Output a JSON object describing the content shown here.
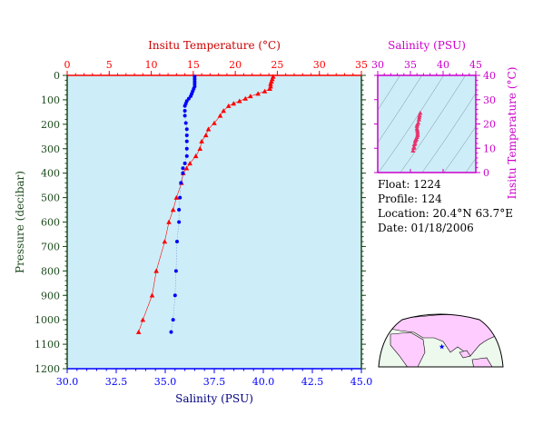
{
  "chart_data": [
    {
      "type": "scatter",
      "title": "",
      "top_axis": {
        "label": "Insitu Temperature (°C)",
        "range": [
          0,
          35
        ],
        "ticks": [
          "0",
          "5",
          "10",
          "15",
          "20",
          "25",
          "30",
          "35"
        ]
      },
      "bottom_axis": {
        "label": "Salinity (PSU)",
        "range": [
          30.0,
          45.0
        ],
        "ticks": [
          "30.0",
          "32.5",
          "35.0",
          "37.5",
          "40.0",
          "42.5",
          "45.0"
        ]
      },
      "left_axis": {
        "label": "Pressure (decibar)",
        "range": [
          0,
          1200
        ],
        "inverted": true,
        "ticks": [
          "0",
          "100",
          "200",
          "300",
          "400",
          "500",
          "600",
          "700",
          "800",
          "900",
          "1000",
          "1100",
          "1200"
        ]
      },
      "series": [
        {
          "variable": "temperature",
          "color": "#ff0000",
          "marker": "triangle",
          "points": [
            {
              "x": 24.5,
              "y": 5
            },
            {
              "x": 24.4,
              "y": 15
            },
            {
              "x": 24.3,
              "y": 25
            },
            {
              "x": 24.2,
              "y": 35
            },
            {
              "x": 24.2,
              "y": 45
            },
            {
              "x": 24.1,
              "y": 55
            },
            {
              "x": 23.5,
              "y": 65
            },
            {
              "x": 22.7,
              "y": 75
            },
            {
              "x": 21.8,
              "y": 85
            },
            {
              "x": 21.2,
              "y": 95
            },
            {
              "x": 20.5,
              "y": 105
            },
            {
              "x": 19.8,
              "y": 115
            },
            {
              "x": 19.2,
              "y": 125
            },
            {
              "x": 18.6,
              "y": 145
            },
            {
              "x": 18.2,
              "y": 165
            },
            {
              "x": 17.5,
              "y": 195
            },
            {
              "x": 16.8,
              "y": 220
            },
            {
              "x": 16.5,
              "y": 245
            },
            {
              "x": 16.0,
              "y": 270
            },
            {
              "x": 15.8,
              "y": 300
            },
            {
              "x": 15.3,
              "y": 330
            },
            {
              "x": 14.6,
              "y": 360
            },
            {
              "x": 14.2,
              "y": 380
            },
            {
              "x": 13.8,
              "y": 400
            },
            {
              "x": 13.6,
              "y": 440
            },
            {
              "x": 13.0,
              "y": 500
            },
            {
              "x": 12.6,
              "y": 550
            },
            {
              "x": 12.1,
              "y": 600
            },
            {
              "x": 11.6,
              "y": 680
            },
            {
              "x": 10.6,
              "y": 800
            },
            {
              "x": 10.1,
              "y": 900
            },
            {
              "x": 9.0,
              "y": 1000
            },
            {
              "x": 8.5,
              "y": 1050
            }
          ]
        },
        {
          "variable": "salinity",
          "color": "#0000ff",
          "marker": "circle",
          "points": [
            {
              "x": 36.5,
              "y": 5
            },
            {
              "x": 36.5,
              "y": 15
            },
            {
              "x": 36.5,
              "y": 25
            },
            {
              "x": 36.5,
              "y": 35
            },
            {
              "x": 36.5,
              "y": 45
            },
            {
              "x": 36.45,
              "y": 55
            },
            {
              "x": 36.4,
              "y": 65
            },
            {
              "x": 36.35,
              "y": 75
            },
            {
              "x": 36.3,
              "y": 85
            },
            {
              "x": 36.2,
              "y": 95
            },
            {
              "x": 36.1,
              "y": 105
            },
            {
              "x": 36.05,
              "y": 115
            },
            {
              "x": 36.0,
              "y": 125
            },
            {
              "x": 36.0,
              "y": 145
            },
            {
              "x": 36.0,
              "y": 165
            },
            {
              "x": 36.05,
              "y": 195
            },
            {
              "x": 36.1,
              "y": 220
            },
            {
              "x": 36.1,
              "y": 245
            },
            {
              "x": 36.1,
              "y": 270
            },
            {
              "x": 36.1,
              "y": 300
            },
            {
              "x": 36.1,
              "y": 330
            },
            {
              "x": 36.0,
              "y": 360
            },
            {
              "x": 35.9,
              "y": 380
            },
            {
              "x": 35.9,
              "y": 400
            },
            {
              "x": 35.8,
              "y": 440
            },
            {
              "x": 35.75,
              "y": 500
            },
            {
              "x": 35.7,
              "y": 550
            },
            {
              "x": 35.7,
              "y": 600
            },
            {
              "x": 35.6,
              "y": 680
            },
            {
              "x": 35.55,
              "y": 800
            },
            {
              "x": 35.5,
              "y": 900
            },
            {
              "x": 35.4,
              "y": 1000
            },
            {
              "x": 35.3,
              "y": 1050
            }
          ]
        }
      ]
    },
    {
      "type": "scatter",
      "title": "",
      "top_axis": {
        "label": "Salinity (PSU)",
        "range": [
          30,
          45
        ],
        "ticks": [
          "30",
          "35",
          "40",
          "45"
        ]
      },
      "right_axis": {
        "label": "Insitu Temperature (°C)",
        "range": [
          0,
          40
        ],
        "ticks": [
          "0",
          "10",
          "20",
          "30",
          "40"
        ]
      },
      "background_curves": "density isolines",
      "series": [
        {
          "color": "#e8336d",
          "marker": "triangle",
          "points": [
            {
              "x": 36.5,
              "y": 24.5
            },
            {
              "x": 36.4,
              "y": 23.5
            },
            {
              "x": 36.35,
              "y": 22.7
            },
            {
              "x": 36.3,
              "y": 21.8
            },
            {
              "x": 36.2,
              "y": 20.5
            },
            {
              "x": 36.05,
              "y": 19.8
            },
            {
              "x": 36.0,
              "y": 19.2
            },
            {
              "x": 36.0,
              "y": 18.2
            },
            {
              "x": 36.05,
              "y": 17.5
            },
            {
              "x": 36.1,
              "y": 16.8
            },
            {
              "x": 36.1,
              "y": 16.0
            },
            {
              "x": 36.1,
              "y": 15.3
            },
            {
              "x": 36.0,
              "y": 14.6
            },
            {
              "x": 35.9,
              "y": 13.8
            },
            {
              "x": 35.8,
              "y": 13.6
            },
            {
              "x": 35.75,
              "y": 13.0
            },
            {
              "x": 35.7,
              "y": 12.1
            },
            {
              "x": 35.6,
              "y": 11.6
            },
            {
              "x": 35.55,
              "y": 10.6
            },
            {
              "x": 35.5,
              "y": 10.1
            },
            {
              "x": 35.4,
              "y": 9.0
            }
          ]
        }
      ]
    }
  ],
  "info": {
    "float": "Float:  1224",
    "profile": "Profile:  124",
    "location": "Location:  20.4°N  63.7°E",
    "date": "Date:  01/18/2006"
  },
  "map": {
    "marker": {
      "lat": 20.4,
      "lon": 63.7,
      "symbol": "star"
    }
  },
  "colors": {
    "plot_bg": "#cdeef8",
    "temperature": "#ff0000",
    "salinity": "#0000ff",
    "ts_axis": "#cc00cc",
    "pressure_axis": "#1c4a1c",
    "land": "#ffccff",
    "ocean": "#eef9ee"
  }
}
